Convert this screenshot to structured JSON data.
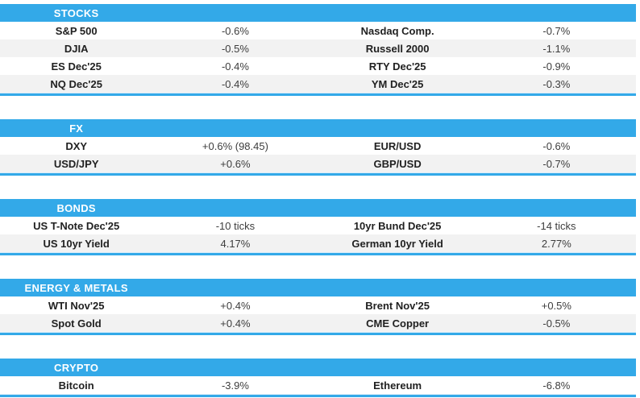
{
  "accent_color": "#33a9e8",
  "row_alt_color": "#f2f2f2",
  "header_text_color": "#ffffff",
  "chart_data": [
    {
      "type": "table",
      "title": "STOCKS",
      "rows": [
        [
          "S&P 500",
          "-0.6%",
          "Nasdaq Comp.",
          "-0.7%"
        ],
        [
          "DJIA",
          "-0.5%",
          "Russell 2000",
          "-1.1%"
        ],
        [
          "ES Dec'25",
          "-0.4%",
          "RTY Dec'25",
          "-0.9%"
        ],
        [
          "NQ Dec'25",
          "-0.4%",
          "YM Dec'25",
          "-0.3%"
        ]
      ]
    },
    {
      "type": "table",
      "title": "FX",
      "rows": [
        [
          "DXY",
          "+0.6% (98.45)",
          "EUR/USD",
          "-0.6%"
        ],
        [
          "USD/JPY",
          "+0.6%",
          "GBP/USD",
          "-0.7%"
        ]
      ]
    },
    {
      "type": "table",
      "title": "BONDS",
      "rows": [
        [
          "US T-Note Dec'25",
          "-10 ticks",
          "10yr Bund Dec'25",
          "-14 ticks"
        ],
        [
          "US 10yr Yield",
          "4.17%",
          "German 10yr Yield",
          "2.77%"
        ]
      ]
    },
    {
      "type": "table",
      "title": "ENERGY & METALS",
      "rows": [
        [
          "WTI Nov'25",
          "+0.4%",
          "Brent Nov'25",
          "+0.5%"
        ],
        [
          "Spot Gold",
          "+0.4%",
          "CME Copper",
          "-0.5%"
        ]
      ]
    },
    {
      "type": "table",
      "title": "CRYPTO",
      "rows": [
        [
          "Bitcoin",
          "-3.9%",
          "Ethereum",
          "-6.8%"
        ]
      ]
    }
  ]
}
